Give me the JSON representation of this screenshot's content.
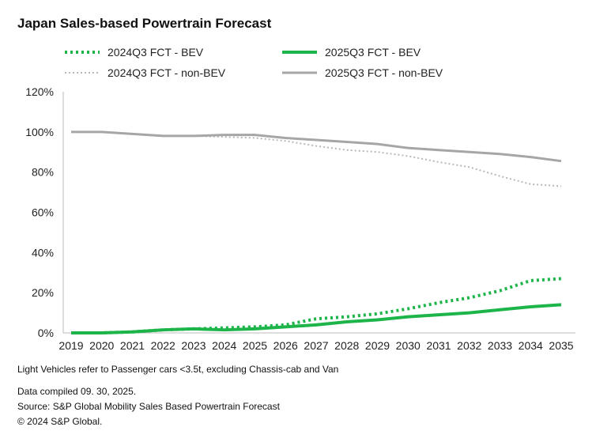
{
  "chart_data": {
    "type": "line",
    "title": "Japan Sales-based Powertrain Forecast",
    "xlabel": "",
    "ylabel": "",
    "x": [
      "2019",
      "2020",
      "2021",
      "2022",
      "2023",
      "2024",
      "2025",
      "2026",
      "2027",
      "2028",
      "2029",
      "2030",
      "2031",
      "2032",
      "2033",
      "2034",
      "2035"
    ],
    "ylim": [
      0,
      120
    ],
    "yticks": [
      "0%",
      "20%",
      "40%",
      "60%",
      "80%",
      "100%",
      "120%"
    ],
    "grid": false,
    "legend_position": "top",
    "series": [
      {
        "name": "2024Q3 FCT - BEV",
        "color": "#1db54a",
        "style": "dotted",
        "values": [
          0,
          0,
          0.5,
          1.5,
          2,
          2.5,
          3,
          4,
          7,
          8,
          9.5,
          12,
          15,
          17.5,
          21,
          26,
          27
        ]
      },
      {
        "name": "2025Q3 FCT - BEV",
        "color": "#1db54a",
        "style": "solid",
        "values": [
          0,
          0,
          0.5,
          1.5,
          2,
          1.5,
          2,
          3,
          4,
          5.5,
          6.5,
          8,
          9,
          10,
          11.5,
          13,
          14
        ]
      },
      {
        "name": "2024Q3 FCT - non-BEV",
        "color": "#b8b8b8",
        "style": "dotted",
        "values": [
          100,
          100,
          99,
          98,
          98,
          97.5,
          97,
          95.5,
          93,
          91,
          90,
          88,
          85,
          82.5,
          78,
          74,
          73
        ]
      },
      {
        "name": "2025Q3 FCT - non-BEV",
        "color": "#a6a6a6",
        "style": "solid",
        "values": [
          100,
          100,
          99,
          98,
          98,
          98.5,
          98.5,
          97,
          96,
          95,
          94,
          92,
          91,
          90,
          89,
          87.5,
          85.5
        ]
      }
    ]
  },
  "notes": {
    "definition": "Light Vehicles refer to Passenger cars <3.5t, excluding Chassis-cab and Van",
    "compiled": "Data compiled 09. 30, 2025.",
    "source": "Source: S&P Global Mobility Sales Based Powertrain Forecast",
    "copyright": "© 2024 S&P Global."
  }
}
